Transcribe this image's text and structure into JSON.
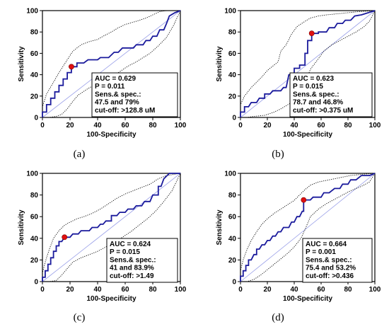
{
  "chart_data": [
    {
      "type": "line",
      "panel_label": "(a)",
      "xlabel": "100-Specificity",
      "ylabel": "Sensitivity",
      "xlim": [
        0,
        100
      ],
      "ylim": [
        0,
        100
      ],
      "xticks": [
        "0",
        "20",
        "40",
        "60",
        "80",
        "100"
      ],
      "yticks": [
        "0",
        "20",
        "40",
        "60",
        "80",
        "100"
      ],
      "annotation": [
        "AUC = 0.629",
        "P = 0.011",
        "Sens.& spec.:",
        "47.5 and 79%",
        "cut-off: >128.8 uM"
      ],
      "cutoff_point": {
        "x": 21,
        "y": 47.5
      },
      "roc": [
        [
          0,
          0
        ],
        [
          0,
          5
        ],
        [
          3,
          5
        ],
        [
          3,
          12
        ],
        [
          6,
          12
        ],
        [
          6,
          18
        ],
        [
          9,
          18
        ],
        [
          9,
          24
        ],
        [
          12,
          24
        ],
        [
          12,
          30
        ],
        [
          15,
          30
        ],
        [
          15,
          36
        ],
        [
          18,
          36
        ],
        [
          18,
          42
        ],
        [
          21,
          42
        ],
        [
          21,
          47.5
        ],
        [
          25,
          47.5
        ],
        [
          25,
          51
        ],
        [
          30,
          51
        ],
        [
          33,
          54
        ],
        [
          40,
          54
        ],
        [
          42,
          56
        ],
        [
          48,
          56
        ],
        [
          52,
          61
        ],
        [
          55,
          61
        ],
        [
          58,
          65
        ],
        [
          66,
          65
        ],
        [
          68,
          68
        ],
        [
          73,
          68
        ],
        [
          75,
          72
        ],
        [
          78,
          72
        ],
        [
          80,
          76
        ],
        [
          83,
          76
        ],
        [
          85,
          82
        ],
        [
          88,
          82
        ],
        [
          90,
          88
        ],
        [
          92,
          95
        ],
        [
          96,
          98
        ],
        [
          100,
          100
        ]
      ],
      "ci_upper": [
        [
          0,
          0
        ],
        [
          0,
          10
        ],
        [
          3,
          22
        ],
        [
          8,
          33
        ],
        [
          12,
          42
        ],
        [
          18,
          54
        ],
        [
          22,
          62
        ],
        [
          28,
          68
        ],
        [
          34,
          71
        ],
        [
          40,
          73
        ],
        [
          44,
          76
        ],
        [
          50,
          80
        ],
        [
          55,
          84
        ],
        [
          60,
          87
        ],
        [
          68,
          90
        ],
        [
          75,
          93
        ],
        [
          80,
          96
        ],
        [
          85,
          99
        ],
        [
          90,
          100
        ],
        [
          100,
          100
        ]
      ],
      "ci_lower": [
        [
          0,
          0
        ],
        [
          5,
          0
        ],
        [
          10,
          1
        ],
        [
          14,
          3
        ],
        [
          18,
          8
        ],
        [
          22,
          15
        ],
        [
          26,
          21
        ],
        [
          33,
          27
        ],
        [
          40,
          32
        ],
        [
          48,
          37
        ],
        [
          55,
          42
        ],
        [
          62,
          48
        ],
        [
          68,
          52
        ],
        [
          73,
          56
        ],
        [
          78,
          60
        ],
        [
          84,
          67
        ],
        [
          90,
          75
        ],
        [
          95,
          86
        ],
        [
          100,
          100
        ]
      ]
    },
    {
      "type": "line",
      "panel_label": "(b)",
      "xlabel": "100-Specificity",
      "ylabel": "Sensitivity",
      "xlim": [
        0,
        100
      ],
      "ylim": [
        0,
        100
      ],
      "xticks": [
        "0",
        "20",
        "40",
        "60",
        "80",
        "100"
      ],
      "yticks": [
        "0",
        "20",
        "40",
        "60",
        "80",
        "100"
      ],
      "annotation": [
        "AUC = 0.623",
        "P = 0.015",
        "Sens.& spec.:",
        "78.7 and 46.8%",
        "cut-off: >0.375 uM"
      ],
      "cutoff_point": {
        "x": 53,
        "y": 78.7
      },
      "roc": [
        [
          0,
          0
        ],
        [
          0,
          5
        ],
        [
          3,
          5
        ],
        [
          3,
          10
        ],
        [
          6,
          10
        ],
        [
          8,
          14
        ],
        [
          12,
          14
        ],
        [
          14,
          18
        ],
        [
          18,
          18
        ],
        [
          18,
          22
        ],
        [
          22,
          22
        ],
        [
          24,
          25
        ],
        [
          30,
          25
        ],
        [
          32,
          28
        ],
        [
          34,
          28
        ],
        [
          36,
          40
        ],
        [
          40,
          40
        ],
        [
          40,
          46
        ],
        [
          44,
          46
        ],
        [
          44,
          49
        ],
        [
          48,
          49
        ],
        [
          48,
          60
        ],
        [
          50,
          60
        ],
        [
          50,
          72
        ],
        [
          53,
          72
        ],
        [
          53,
          78.7
        ],
        [
          58,
          78.7
        ],
        [
          58,
          80
        ],
        [
          64,
          80
        ],
        [
          66,
          84
        ],
        [
          70,
          84
        ],
        [
          72,
          88
        ],
        [
          76,
          88
        ],
        [
          78,
          91
        ],
        [
          82,
          91
        ],
        [
          85,
          95
        ],
        [
          90,
          96
        ],
        [
          95,
          98
        ],
        [
          100,
          100
        ]
      ],
      "ci_upper": [
        [
          0,
          0
        ],
        [
          0,
          12
        ],
        [
          3,
          20
        ],
        [
          8,
          28
        ],
        [
          12,
          33
        ],
        [
          16,
          38
        ],
        [
          20,
          44
        ],
        [
          24,
          48
        ],
        [
          28,
          52
        ],
        [
          30,
          62
        ],
        [
          34,
          68
        ],
        [
          38,
          78
        ],
        [
          42,
          85
        ],
        [
          48,
          90
        ],
        [
          52,
          93
        ],
        [
          58,
          95
        ],
        [
          64,
          96
        ],
        [
          72,
          97
        ],
        [
          80,
          98
        ],
        [
          88,
          99
        ],
        [
          100,
          100
        ]
      ],
      "ci_lower": [
        [
          0,
          0
        ],
        [
          5,
          0
        ],
        [
          10,
          1
        ],
        [
          18,
          2
        ],
        [
          25,
          5
        ],
        [
          30,
          8
        ],
        [
          38,
          14
        ],
        [
          44,
          22
        ],
        [
          48,
          32
        ],
        [
          52,
          45
        ],
        [
          58,
          55
        ],
        [
          62,
          62
        ],
        [
          68,
          68
        ],
        [
          74,
          72
        ],
        [
          80,
          76
        ],
        [
          86,
          80
        ],
        [
          92,
          85
        ],
        [
          96,
          90
        ],
        [
          100,
          100
        ]
      ]
    },
    {
      "type": "line",
      "panel_label": "(c)",
      "xlabel": "100-Specificity",
      "ylabel": "Sensitivity",
      "xlim": [
        0,
        100
      ],
      "ylim": [
        0,
        100
      ],
      "xticks": [
        "0",
        "20",
        "40",
        "60",
        "80",
        "100"
      ],
      "yticks": [
        "0",
        "20",
        "40",
        "60",
        "80",
        "100"
      ],
      "annotation": [
        "AUC = 0.624",
        "P = 0.015",
        "Sens.& spec.:",
        "41 and 83.9%",
        "cut-off: >1.49"
      ],
      "cutoff_point": {
        "x": 16,
        "y": 41
      },
      "roc": [
        [
          0,
          0
        ],
        [
          0,
          4
        ],
        [
          2,
          4
        ],
        [
          2,
          10
        ],
        [
          4,
          10
        ],
        [
          4,
          16
        ],
        [
          6,
          16
        ],
        [
          6,
          22
        ],
        [
          8,
          22
        ],
        [
          8,
          28
        ],
        [
          10,
          28
        ],
        [
          10,
          33
        ],
        [
          12,
          33
        ],
        [
          12,
          37
        ],
        [
          14,
          37
        ],
        [
          16,
          41
        ],
        [
          20,
          41
        ],
        [
          22,
          44
        ],
        [
          26,
          44
        ],
        [
          28,
          47
        ],
        [
          34,
          47
        ],
        [
          36,
          50
        ],
        [
          40,
          50
        ],
        [
          42,
          53
        ],
        [
          44,
          53
        ],
        [
          46,
          56
        ],
        [
          50,
          56
        ],
        [
          50,
          61
        ],
        [
          54,
          61
        ],
        [
          56,
          64
        ],
        [
          60,
          64
        ],
        [
          62,
          67
        ],
        [
          66,
          67
        ],
        [
          68,
          70
        ],
        [
          72,
          70
        ],
        [
          74,
          74
        ],
        [
          78,
          74
        ],
        [
          80,
          80
        ],
        [
          84,
          80
        ],
        [
          84,
          88
        ],
        [
          86,
          88
        ],
        [
          88,
          95
        ],
        [
          92,
          100
        ],
        [
          100,
          100
        ]
      ],
      "ci_upper": [
        [
          0,
          0
        ],
        [
          0,
          8
        ],
        [
          2,
          18
        ],
        [
          5,
          30
        ],
        [
          8,
          40
        ],
        [
          12,
          47
        ],
        [
          16,
          52
        ],
        [
          20,
          55
        ],
        [
          25,
          58
        ],
        [
          30,
          60
        ],
        [
          36,
          63
        ],
        [
          42,
          67
        ],
        [
          48,
          72
        ],
        [
          54,
          77
        ],
        [
          60,
          81
        ],
        [
          66,
          84
        ],
        [
          72,
          87
        ],
        [
          78,
          90
        ],
        [
          84,
          95
        ],
        [
          90,
          98
        ],
        [
          100,
          100
        ]
      ],
      "ci_lower": [
        [
          0,
          0
        ],
        [
          5,
          0
        ],
        [
          10,
          1
        ],
        [
          14,
          6
        ],
        [
          18,
          12
        ],
        [
          22,
          18
        ],
        [
          28,
          22
        ],
        [
          34,
          25
        ],
        [
          40,
          28
        ],
        [
          46,
          32
        ],
        [
          52,
          36
        ],
        [
          58,
          41
        ],
        [
          64,
          46
        ],
        [
          70,
          52
        ],
        [
          76,
          58
        ],
        [
          82,
          65
        ],
        [
          88,
          74
        ],
        [
          94,
          84
        ],
        [
          100,
          100
        ]
      ]
    },
    {
      "type": "line",
      "panel_label": "(d)",
      "xlabel": "100-Specificity",
      "ylabel": "Sensitivity",
      "xlim": [
        0,
        100
      ],
      "ylim": [
        0,
        100
      ],
      "xticks": [
        "0",
        "20",
        "40",
        "60",
        "80",
        "100"
      ],
      "yticks": [
        "0",
        "20",
        "40",
        "60",
        "80",
        "100"
      ],
      "annotation": [
        "AUC = 0.664",
        "P = 0.001",
        "Sens.& spec.:",
        "75.4 and 53.2%",
        "cut-off: >0.436"
      ],
      "cutoff_point": {
        "x": 47,
        "y": 75.4
      },
      "roc": [
        [
          0,
          0
        ],
        [
          0,
          5
        ],
        [
          2,
          5
        ],
        [
          2,
          10
        ],
        [
          4,
          10
        ],
        [
          4,
          15
        ],
        [
          6,
          15
        ],
        [
          6,
          20
        ],
        [
          8,
          20
        ],
        [
          10,
          25
        ],
        [
          12,
          25
        ],
        [
          12,
          30
        ],
        [
          14,
          30
        ],
        [
          16,
          34
        ],
        [
          18,
          34
        ],
        [
          20,
          38
        ],
        [
          22,
          38
        ],
        [
          24,
          42
        ],
        [
          26,
          42
        ],
        [
          28,
          46
        ],
        [
          30,
          46
        ],
        [
          32,
          50
        ],
        [
          36,
          50
        ],
        [
          38,
          55
        ],
        [
          40,
          55
        ],
        [
          42,
          60
        ],
        [
          44,
          60
        ],
        [
          46,
          65
        ],
        [
          47,
          65
        ],
        [
          47,
          75.4
        ],
        [
          52,
          75.4
        ],
        [
          54,
          78
        ],
        [
          60,
          78
        ],
        [
          62,
          82
        ],
        [
          66,
          82
        ],
        [
          70,
          86
        ],
        [
          74,
          86
        ],
        [
          76,
          90
        ],
        [
          80,
          90
        ],
        [
          82,
          94
        ],
        [
          86,
          94
        ],
        [
          90,
          98
        ],
        [
          96,
          98
        ],
        [
          100,
          100
        ]
      ],
      "ci_upper": [
        [
          0,
          0
        ],
        [
          0,
          10
        ],
        [
          2,
          20
        ],
        [
          5,
          30
        ],
        [
          8,
          38
        ],
        [
          12,
          46
        ],
        [
          16,
          53
        ],
        [
          20,
          58
        ],
        [
          25,
          63
        ],
        [
          30,
          67
        ],
        [
          35,
          71
        ],
        [
          40,
          75
        ],
        [
          44,
          80
        ],
        [
          48,
          85
        ],
        [
          52,
          89
        ],
        [
          58,
          92
        ],
        [
          66,
          94
        ],
        [
          74,
          96
        ],
        [
          82,
          98
        ],
        [
          90,
          99
        ],
        [
          100,
          100
        ]
      ],
      "ci_lower": [
        [
          0,
          0
        ],
        [
          5,
          0
        ],
        [
          10,
          2
        ],
        [
          15,
          6
        ],
        [
          20,
          11
        ],
        [
          25,
          16
        ],
        [
          30,
          21
        ],
        [
          35,
          26
        ],
        [
          40,
          32
        ],
        [
          45,
          40
        ],
        [
          48,
          48
        ],
        [
          52,
          60
        ],
        [
          58,
          67
        ],
        [
          64,
          72
        ],
        [
          70,
          76
        ],
        [
          76,
          80
        ],
        [
          82,
          84
        ],
        [
          90,
          88
        ],
        [
          96,
          92
        ],
        [
          100,
          100
        ]
      ]
    }
  ]
}
